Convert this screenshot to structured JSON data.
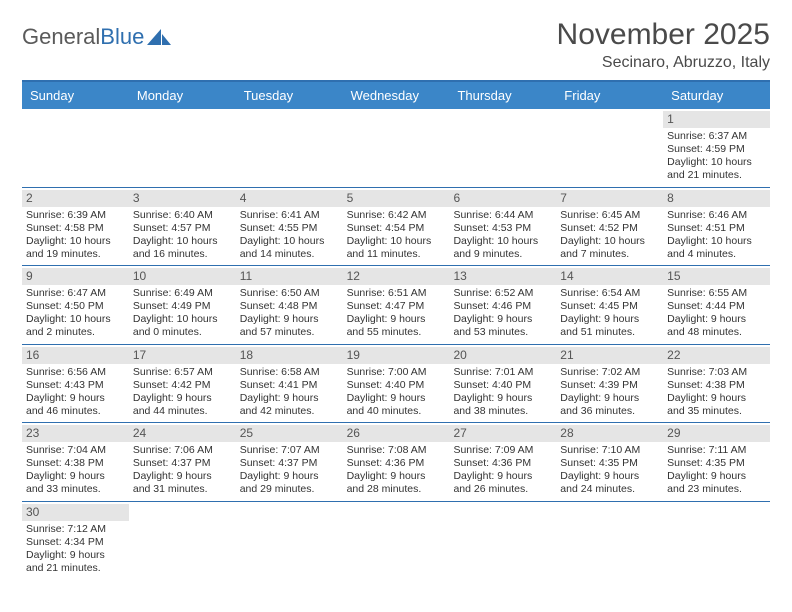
{
  "logo": {
    "text1": "General",
    "text2": "Blue"
  },
  "title": "November 2025",
  "subtitle": "Secinaro, Abruzzo, Italy",
  "colors": {
    "header_bar": "#3b86c8",
    "header_border": "#2f6faf",
    "daynum_bg": "#e5e5e5",
    "text": "#333333"
  },
  "weekdays": [
    "Sunday",
    "Monday",
    "Tuesday",
    "Wednesday",
    "Thursday",
    "Friday",
    "Saturday"
  ],
  "weeks": [
    [
      {
        "n": "",
        "empty": true
      },
      {
        "n": "",
        "empty": true
      },
      {
        "n": "",
        "empty": true
      },
      {
        "n": "",
        "empty": true
      },
      {
        "n": "",
        "empty": true
      },
      {
        "n": "",
        "empty": true
      },
      {
        "n": "1",
        "sr": "Sunrise: 6:37 AM",
        "ss": "Sunset: 4:59 PM",
        "dl": "Daylight: 10 hours and 21 minutes."
      }
    ],
    [
      {
        "n": "2",
        "sr": "Sunrise: 6:39 AM",
        "ss": "Sunset: 4:58 PM",
        "dl": "Daylight: 10 hours and 19 minutes."
      },
      {
        "n": "3",
        "sr": "Sunrise: 6:40 AM",
        "ss": "Sunset: 4:57 PM",
        "dl": "Daylight: 10 hours and 16 minutes."
      },
      {
        "n": "4",
        "sr": "Sunrise: 6:41 AM",
        "ss": "Sunset: 4:55 PM",
        "dl": "Daylight: 10 hours and 14 minutes."
      },
      {
        "n": "5",
        "sr": "Sunrise: 6:42 AM",
        "ss": "Sunset: 4:54 PM",
        "dl": "Daylight: 10 hours and 11 minutes."
      },
      {
        "n": "6",
        "sr": "Sunrise: 6:44 AM",
        "ss": "Sunset: 4:53 PM",
        "dl": "Daylight: 10 hours and 9 minutes."
      },
      {
        "n": "7",
        "sr": "Sunrise: 6:45 AM",
        "ss": "Sunset: 4:52 PM",
        "dl": "Daylight: 10 hours and 7 minutes."
      },
      {
        "n": "8",
        "sr": "Sunrise: 6:46 AM",
        "ss": "Sunset: 4:51 PM",
        "dl": "Daylight: 10 hours and 4 minutes."
      }
    ],
    [
      {
        "n": "9",
        "sr": "Sunrise: 6:47 AM",
        "ss": "Sunset: 4:50 PM",
        "dl": "Daylight: 10 hours and 2 minutes."
      },
      {
        "n": "10",
        "sr": "Sunrise: 6:49 AM",
        "ss": "Sunset: 4:49 PM",
        "dl": "Daylight: 10 hours and 0 minutes."
      },
      {
        "n": "11",
        "sr": "Sunrise: 6:50 AM",
        "ss": "Sunset: 4:48 PM",
        "dl": "Daylight: 9 hours and 57 minutes."
      },
      {
        "n": "12",
        "sr": "Sunrise: 6:51 AM",
        "ss": "Sunset: 4:47 PM",
        "dl": "Daylight: 9 hours and 55 minutes."
      },
      {
        "n": "13",
        "sr": "Sunrise: 6:52 AM",
        "ss": "Sunset: 4:46 PM",
        "dl": "Daylight: 9 hours and 53 minutes."
      },
      {
        "n": "14",
        "sr": "Sunrise: 6:54 AM",
        "ss": "Sunset: 4:45 PM",
        "dl": "Daylight: 9 hours and 51 minutes."
      },
      {
        "n": "15",
        "sr": "Sunrise: 6:55 AM",
        "ss": "Sunset: 4:44 PM",
        "dl": "Daylight: 9 hours and 48 minutes."
      }
    ],
    [
      {
        "n": "16",
        "sr": "Sunrise: 6:56 AM",
        "ss": "Sunset: 4:43 PM",
        "dl": "Daylight: 9 hours and 46 minutes."
      },
      {
        "n": "17",
        "sr": "Sunrise: 6:57 AM",
        "ss": "Sunset: 4:42 PM",
        "dl": "Daylight: 9 hours and 44 minutes."
      },
      {
        "n": "18",
        "sr": "Sunrise: 6:58 AM",
        "ss": "Sunset: 4:41 PM",
        "dl": "Daylight: 9 hours and 42 minutes."
      },
      {
        "n": "19",
        "sr": "Sunrise: 7:00 AM",
        "ss": "Sunset: 4:40 PM",
        "dl": "Daylight: 9 hours and 40 minutes."
      },
      {
        "n": "20",
        "sr": "Sunrise: 7:01 AM",
        "ss": "Sunset: 4:40 PM",
        "dl": "Daylight: 9 hours and 38 minutes."
      },
      {
        "n": "21",
        "sr": "Sunrise: 7:02 AM",
        "ss": "Sunset: 4:39 PM",
        "dl": "Daylight: 9 hours and 36 minutes."
      },
      {
        "n": "22",
        "sr": "Sunrise: 7:03 AM",
        "ss": "Sunset: 4:38 PM",
        "dl": "Daylight: 9 hours and 35 minutes."
      }
    ],
    [
      {
        "n": "23",
        "sr": "Sunrise: 7:04 AM",
        "ss": "Sunset: 4:38 PM",
        "dl": "Daylight: 9 hours and 33 minutes."
      },
      {
        "n": "24",
        "sr": "Sunrise: 7:06 AM",
        "ss": "Sunset: 4:37 PM",
        "dl": "Daylight: 9 hours and 31 minutes."
      },
      {
        "n": "25",
        "sr": "Sunrise: 7:07 AM",
        "ss": "Sunset: 4:37 PM",
        "dl": "Daylight: 9 hours and 29 minutes."
      },
      {
        "n": "26",
        "sr": "Sunrise: 7:08 AM",
        "ss": "Sunset: 4:36 PM",
        "dl": "Daylight: 9 hours and 28 minutes."
      },
      {
        "n": "27",
        "sr": "Sunrise: 7:09 AM",
        "ss": "Sunset: 4:36 PM",
        "dl": "Daylight: 9 hours and 26 minutes."
      },
      {
        "n": "28",
        "sr": "Sunrise: 7:10 AM",
        "ss": "Sunset: 4:35 PM",
        "dl": "Daylight: 9 hours and 24 minutes."
      },
      {
        "n": "29",
        "sr": "Sunrise: 7:11 AM",
        "ss": "Sunset: 4:35 PM",
        "dl": "Daylight: 9 hours and 23 minutes."
      }
    ],
    [
      {
        "n": "30",
        "sr": "Sunrise: 7:12 AM",
        "ss": "Sunset: 4:34 PM",
        "dl": "Daylight: 9 hours and 21 minutes."
      },
      {
        "n": "",
        "empty": true
      },
      {
        "n": "",
        "empty": true
      },
      {
        "n": "",
        "empty": true
      },
      {
        "n": "",
        "empty": true
      },
      {
        "n": "",
        "empty": true
      },
      {
        "n": "",
        "empty": true
      }
    ]
  ]
}
